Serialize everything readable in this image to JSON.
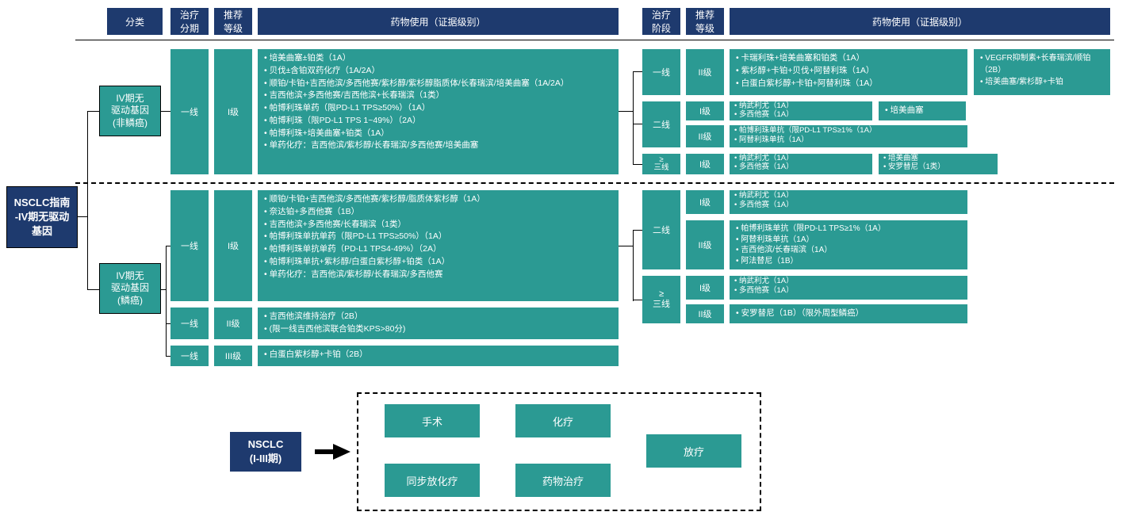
{
  "colors": {
    "navy": "#1e3a6e",
    "teal": "#2b9a93",
    "white": "#ffffff",
    "black": "#000000"
  },
  "headers": {
    "cat": "分类",
    "stage": "治疗\n分期",
    "grade": "推荐\n等级",
    "drugs": "药物使用（证据级别）",
    "phase": "治疗\n阶段",
    "grade2": "推荐\n等级",
    "drugs2": "药物使用（证据级别）"
  },
  "root": "NSCLC指南\n-IV期无驱动\n基因",
  "cat1": "IV期无\n驱动基因\n(非鳞癌)",
  "cat2": "IV期无\n驱动基因\n(鳞癌)",
  "left": {
    "row1": {
      "stage": "一线",
      "grade": "I级",
      "drugs": [
        "培美曲塞±铂类（1A）",
        "贝伐±含铂双药化疗（1A/2A）",
        "顺铂/卡铂+吉西他滨/多西他赛/紫杉醇/紫杉醇脂质体/长春瑞滨/培美曲塞（1A/2A）",
        "吉西他滨+多西他赛/吉西他滨+长春瑞滨（1类）",
        "帕博利珠单药（限PD-L1 TPS≥50%）（1A）",
        "帕博利珠（限PD-L1 TPS 1~49%）（2A）",
        "帕博利珠+培美曲塞+铂类（1A）",
        "单药化疗：吉西他滨/紫杉醇/长春瑞滨/多西他赛/培美曲塞"
      ]
    },
    "row2": {
      "stage": "一线",
      "grade": "I级",
      "drugs": [
        "顺铂/卡铂+吉西他滨/多西他赛/紫杉醇/脂质体紫杉醇（1A）",
        "奈达铂+多西他赛（1B）",
        "吉西他滨+多西他赛/长春瑞滨（1类）",
        "帕博利珠单抗单药（限PD-L1 TPS≥50%）（1A）",
        "帕博利珠单抗单药（PD-L1 TPS4-49%）（2A）",
        "帕博利珠单抗+紫杉醇/白蛋白紫杉醇+铂类（1A）",
        "单药化疗：吉西他滨/紫杉醇/长春瑞滨/多西他赛"
      ]
    },
    "row3": {
      "stage": "一线",
      "grade": "II级",
      "drugs": [
        "吉西他滨维持治疗（2B）",
        "(限一线吉西他滨联合铂类KPS>80分)"
      ]
    },
    "row4": {
      "stage": "一线",
      "grade": "III级",
      "drugs": [
        "白蛋白紫杉醇+卡铂（2B）"
      ]
    }
  },
  "right": {
    "r1": {
      "phase": "一线",
      "grade": "II级",
      "drugs": [
        "卡瑞利珠+培美曲塞和铂类（1A）",
        "紫杉醇+卡铂+贝伐+阿替利珠（1A）",
        "白蛋白紫杉醇+卡铂+阿替利珠（1A）"
      ],
      "side": [
        "VEGFR抑制素+长春瑞滨/顺铂（2B）",
        "培美曲塞/紫杉醇+卡铂"
      ]
    },
    "r2a": {
      "phase": "二线",
      "grade": "I级",
      "drugs": [
        "纳武利尤（1A）",
        "多西他赛（1A）"
      ],
      "side": [
        "培美曲塞"
      ]
    },
    "r2b": {
      "grade": "II级",
      "drugs": [
        "帕博利珠单抗（限PD-L1 TPS≥1%（1A）",
        "阿替利珠单抗（1A）"
      ]
    },
    "r3": {
      "phase": "≥\n三线",
      "grade": "I级",
      "drugs": [
        "纳武利尤（1A）",
        "多西他赛（1A）"
      ],
      "side": [
        "培美曲塞",
        "安罗替尼（1类）"
      ]
    },
    "r4a": {
      "phase": "二线",
      "grade": "I级",
      "drugs": [
        "纳武利尤（1A）",
        "多西他赛（1A）"
      ]
    },
    "r4b": {
      "grade": "II级",
      "drugs": [
        "帕博利珠单抗（限PD-L1 TPS≥1%（1A）",
        "阿替利珠单抗（1A）",
        "吉西他滨/长春瑞滨（1A）",
        "阿法替尼（1B）"
      ]
    },
    "r5a": {
      "phase": "≥\n三线",
      "grade": "I级",
      "drugs": [
        "纳武利尤（1A）",
        "多西他赛（1A）"
      ]
    },
    "r5b": {
      "grade": "II级",
      "drugs": [
        "安罗替尼（1B）（限外周型鳞癌）"
      ]
    }
  },
  "bottom": {
    "root": "NSCLC\n(I-III期)",
    "boxes": [
      "手术",
      "化疗",
      "同步放化疗",
      "药物治疗",
      "放疗"
    ]
  }
}
